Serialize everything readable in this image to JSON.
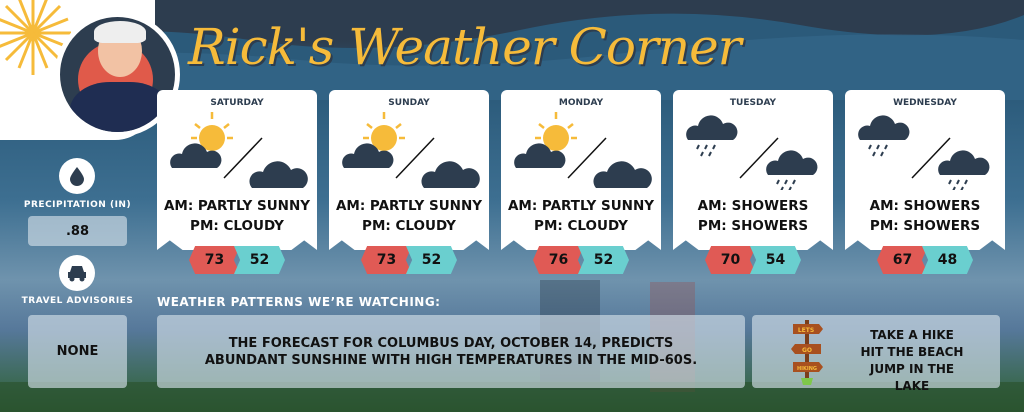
{
  "header": {
    "title": "Rick's Weather Corner"
  },
  "days": [
    {
      "name": "SATURDAY",
      "am_icon": "partly-sunny",
      "pm_icon": "cloudy",
      "am": "AM:  PARTLY SUNNY",
      "pm": "PM: CLOUDY",
      "high": "73",
      "low": "52"
    },
    {
      "name": "SUNDAY",
      "am_icon": "partly-sunny",
      "pm_icon": "cloudy",
      "am": "AM:  PARTLY SUNNY",
      "pm": "PM: CLOUDY",
      "high": "73",
      "low": "52"
    },
    {
      "name": "MONDAY",
      "am_icon": "partly-sunny",
      "pm_icon": "cloudy",
      "am": "AM:  PARTLY SUNNY",
      "pm": "PM: CLOUDY",
      "high": "76",
      "low": "52"
    },
    {
      "name": "TUESDAY",
      "am_icon": "showers",
      "pm_icon": "showers",
      "am": "AM:  SHOWERS",
      "pm": "PM: SHOWERS",
      "high": "70",
      "low": "54"
    },
    {
      "name": "WEDNESDAY",
      "am_icon": "showers",
      "pm_icon": "showers",
      "am": "AM:  SHOWERS",
      "pm": "PM: SHOWERS",
      "high": "67",
      "low": "48"
    }
  ],
  "sidebar": {
    "precip_label": "PRECIPITATION (IN)",
    "precip_value": ".88",
    "travel_label": "TRAVEL ADVISORIES",
    "travel_value": "NONE"
  },
  "patterns": {
    "heading": "WEATHER PATTERNS WE’RE WATCHING:",
    "text_line1": "THE FORECAST FOR COLUMBUS DAY, OCTOBER 14, PREDICTS",
    "text_line2": "ABUNDANT SUNSHINE WITH HIGH TEMPERATURES IN THE MID-60S."
  },
  "activities": {
    "sign": [
      "LETS",
      "GO",
      "HIKING"
    ],
    "items": [
      "TAKE A HIKE",
      "HIT THE BEACH",
      "JUMP IN THE LAKE"
    ]
  },
  "colors": {
    "accent": "#f6bb3a",
    "high": "#e05a55",
    "low": "#6acfcf",
    "navy": "#2d3d4f"
  }
}
